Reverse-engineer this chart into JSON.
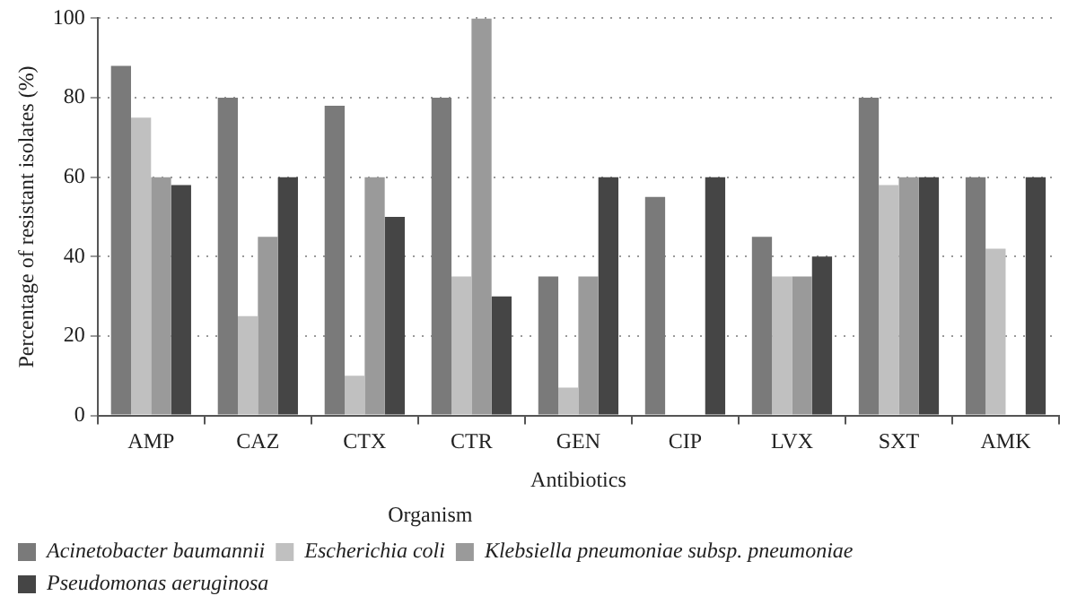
{
  "chart_data": {
    "type": "bar",
    "xlabel": "Antibiotics",
    "ylabel": "Percentage of resistant isolates (%)",
    "legend_title": "Organism",
    "categories": [
      "AMP",
      "CAZ",
      "CTX",
      "CTR",
      "GEN",
      "CIP",
      "LVX",
      "SXT",
      "AMK"
    ],
    "series": [
      {
        "name": "Acinetobacter baumannii",
        "color": "#7a7a7a",
        "values": [
          88,
          80,
          78,
          80,
          35,
          55,
          45,
          80,
          60
        ]
      },
      {
        "name": "Escherichia coli",
        "color": "#c0c0c0",
        "values": [
          75,
          25,
          10,
          35,
          7,
          0,
          35,
          58,
          42
        ]
      },
      {
        "name": "Klebsiella pneumoniae subsp. pneumoniae",
        "color": "#9a9a9a",
        "values": [
          60,
          45,
          60,
          100,
          35,
          0,
          35,
          60,
          0
        ]
      },
      {
        "name": "Pseudomonas aeruginosa",
        "color": "#454545",
        "values": [
          58,
          60,
          50,
          30,
          60,
          60,
          40,
          60,
          60
        ]
      }
    ],
    "ylim": [
      0,
      100
    ],
    "yticks": [
      0,
      20,
      40,
      60,
      80,
      100
    ],
    "grid": "y",
    "legend": "bottom"
  }
}
